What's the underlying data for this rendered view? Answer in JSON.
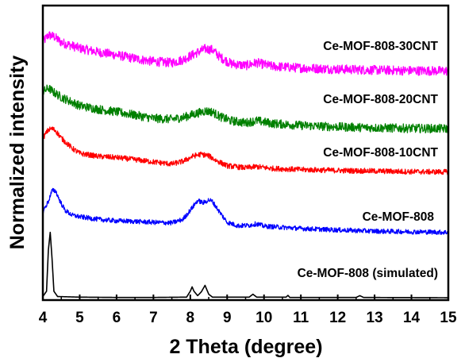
{
  "chart_data": {
    "type": "line",
    "title": "",
    "xlabel": "2 Theta (degree)",
    "ylabel": "Normalized intensity",
    "xlim": [
      4,
      15
    ],
    "ylim": [
      0,
      100
    ],
    "x_ticks": [
      4,
      5,
      6,
      7,
      8,
      9,
      10,
      11,
      12,
      13,
      14,
      15
    ],
    "y_ticks_shown": false,
    "grid": false,
    "legend": "inline labels, right side",
    "series": [
      {
        "name": "Ce-MOF-808-30CNT",
        "color": "#ff00ff",
        "x": [
          4.0,
          4.15,
          4.3,
          4.5,
          5.0,
          5.5,
          6.0,
          6.5,
          7.0,
          7.5,
          7.8,
          8.1,
          8.4,
          8.6,
          8.8,
          9.1,
          9.5,
          9.8,
          10.2,
          11.0,
          12.0,
          13.0,
          14.0,
          15.0
        ],
        "values": [
          87.5,
          90.0,
          89.5,
          87.5,
          85.5,
          84.2,
          83.2,
          82.0,
          81.0,
          80.6,
          81.6,
          83.5,
          85.3,
          85.0,
          82.6,
          80.3,
          79.6,
          80.6,
          79.4,
          78.8,
          78.4,
          78.1,
          77.9,
          77.8
        ]
      },
      {
        "name": "Ce-MOF-808-20CNT",
        "color": "#008000",
        "x": [
          4.0,
          4.15,
          4.3,
          4.5,
          5.0,
          5.5,
          6.0,
          6.5,
          7.0,
          7.5,
          7.8,
          8.1,
          8.4,
          8.6,
          8.8,
          9.1,
          9.5,
          9.8,
          10.2,
          11.0,
          12.0,
          13.0,
          14.0,
          15.0
        ],
        "values": [
          70.6,
          72.0,
          70.5,
          68.9,
          66.0,
          64.8,
          63.9,
          62.8,
          61.7,
          61.4,
          62.0,
          63.1,
          64.2,
          63.9,
          62.3,
          60.9,
          60.2,
          60.9,
          60.0,
          59.3,
          58.8,
          58.5,
          58.3,
          58.2
        ]
      },
      {
        "name": "Ce-MOF-808-10CNT",
        "color": "#ff0000",
        "x": [
          4.0,
          4.15,
          4.25,
          4.35,
          4.5,
          4.8,
          5.0,
          5.5,
          6.0,
          6.5,
          7.0,
          7.5,
          7.8,
          8.1,
          8.3,
          8.5,
          8.7,
          9.0,
          9.5,
          9.8,
          10.2,
          11.0,
          12.0,
          13.0,
          14.0,
          15.0
        ],
        "values": [
          55.0,
          57.8,
          58.2,
          57.5,
          55.0,
          51.5,
          49.8,
          48.8,
          48.4,
          47.7,
          46.9,
          46.2,
          47.1,
          49.0,
          49.5,
          49.0,
          47.4,
          45.6,
          44.9,
          45.3,
          44.7,
          44.3,
          44.0,
          43.8,
          43.6,
          43.5
        ]
      },
      {
        "name": "Ce-MOF-808",
        "color": "#0000ff",
        "x": [
          4.0,
          4.15,
          4.25,
          4.35,
          4.45,
          4.6,
          4.8,
          5.0,
          5.5,
          6.0,
          6.5,
          7.0,
          7.5,
          7.8,
          8.0,
          8.2,
          8.35,
          8.5,
          8.6,
          8.8,
          9.0,
          9.3,
          9.6,
          9.8,
          10.0,
          11.0,
          12.0,
          13.0,
          14.0,
          15.0
        ],
        "values": [
          30.0,
          33.5,
          37.2,
          37.0,
          34.0,
          30.5,
          28.8,
          28.3,
          27.4,
          26.9,
          26.7,
          26.4,
          26.2,
          27.4,
          30.5,
          33.8,
          33.0,
          34.0,
          33.5,
          29.8,
          26.4,
          25.2,
          25.4,
          25.9,
          25.1,
          24.3,
          23.8,
          23.4,
          23.2,
          23.0
        ]
      },
      {
        "name": "Ce-MOF-808 (simulated)",
        "color": "#000000",
        "x": [
          4.0,
          4.1,
          4.15,
          4.2,
          4.25,
          4.3,
          4.4,
          5.0,
          6.0,
          7.0,
          7.9,
          8.0,
          8.05,
          8.1,
          8.2,
          8.3,
          8.4,
          8.45,
          8.5,
          8.6,
          9.6,
          9.7,
          9.8,
          10.6,
          10.65,
          10.7,
          12.5,
          12.6,
          12.7,
          15.0
        ],
        "values": [
          1.2,
          3.0,
          17.0,
          23.0,
          14.0,
          3.0,
          1.2,
          1.0,
          0.9,
          0.9,
          1.0,
          3.0,
          4.5,
          3.0,
          1.5,
          2.8,
          5.0,
          3.5,
          2.0,
          1.0,
          1.0,
          2.0,
          1.0,
          1.0,
          1.6,
          0.9,
          0.9,
          1.5,
          0.9,
          0.8
        ]
      }
    ]
  }
}
